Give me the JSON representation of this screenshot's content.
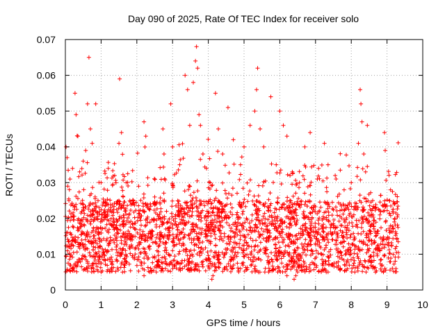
{
  "chart_data": {
    "type": "scatter",
    "title": "Day 090 of 2025, Rate Of TEC Index for receiver solo",
    "xlabel": "GPS time / hours",
    "ylabel": "ROTI / TECUs",
    "xlim": [
      0,
      10
    ],
    "ylim": [
      0,
      0.07
    ],
    "x_ticks": [
      "0",
      "1",
      "2",
      "3",
      "4",
      "5",
      "6",
      "7",
      "8",
      "9",
      "10"
    ],
    "y_ticks": [
      "0",
      "0.01",
      "0.02",
      "0.03",
      "0.04",
      "0.05",
      "0.06",
      "0.07"
    ],
    "grid": true,
    "marker": "+",
    "color": "#ff0000",
    "series": [
      {
        "name": "ROTI",
        "x_range": [
          0.0,
          9.32
        ],
        "typical_range": [
          0.005,
          0.025
        ],
        "points": [
          [
            0.02,
            0.04
          ],
          [
            0.05,
            0.037
          ],
          [
            0.07,
            0.029
          ],
          [
            0.1,
            0.025
          ],
          [
            0.13,
            0.031
          ],
          [
            0.2,
            0.034
          ],
          [
            0.27,
            0.055
          ],
          [
            0.3,
            0.049
          ],
          [
            0.35,
            0.043
          ],
          [
            0.4,
            0.033
          ],
          [
            0.5,
            0.036
          ],
          [
            0.57,
            0.039
          ],
          [
            0.62,
            0.052
          ],
          [
            0.66,
            0.065
          ],
          [
            0.7,
            0.045
          ],
          [
            0.75,
            0.041
          ],
          [
            0.85,
            0.052
          ],
          [
            1.0,
            0.03
          ],
          [
            1.2,
            0.034
          ],
          [
            1.38,
            0.032
          ],
          [
            1.5,
            0.041
          ],
          [
            1.52,
            0.059
          ],
          [
            1.57,
            0.044
          ],
          [
            1.7,
            0.03
          ],
          [
            1.9,
            0.025
          ],
          [
            2.05,
            0.029
          ],
          [
            2.2,
            0.047
          ],
          [
            2.25,
            0.043
          ],
          [
            2.5,
            0.026
          ],
          [
            2.73,
            0.045
          ],
          [
            2.76,
            0.038
          ],
          [
            2.95,
            0.052
          ],
          [
            3.0,
            0.04
          ],
          [
            3.2,
            0.035
          ],
          [
            3.35,
            0.06
          ],
          [
            3.42,
            0.056
          ],
          [
            3.48,
            0.046
          ],
          [
            3.58,
            0.058
          ],
          [
            3.64,
            0.064
          ],
          [
            3.67,
            0.068
          ],
          [
            3.7,
            0.062
          ],
          [
            3.74,
            0.049
          ],
          [
            3.78,
            0.046
          ],
          [
            3.85,
            0.038
          ],
          [
            3.95,
            0.034
          ],
          [
            4.05,
            0.03
          ],
          [
            4.2,
            0.055
          ],
          [
            4.28,
            0.045
          ],
          [
            4.4,
            0.038
          ],
          [
            4.55,
            0.051
          ],
          [
            4.7,
            0.042
          ],
          [
            4.9,
            0.035
          ],
          [
            5.0,
            0.04
          ],
          [
            5.17,
            0.046
          ],
          [
            5.3,
            0.05
          ],
          [
            5.35,
            0.056
          ],
          [
            5.38,
            0.062
          ],
          [
            5.45,
            0.045
          ],
          [
            5.55,
            0.04
          ],
          [
            5.75,
            0.054
          ],
          [
            5.9,
            0.035
          ],
          [
            6.0,
            0.05
          ],
          [
            6.1,
            0.046
          ],
          [
            6.2,
            0.043
          ],
          [
            6.35,
            0.033
          ],
          [
            6.55,
            0.03
          ],
          [
            6.7,
            0.04
          ],
          [
            6.85,
            0.044
          ],
          [
            7.05,
            0.031
          ],
          [
            7.25,
            0.041
          ],
          [
            7.35,
            0.035
          ],
          [
            7.55,
            0.032
          ],
          [
            7.8,
            0.028
          ],
          [
            8.0,
            0.03
          ],
          [
            8.2,
            0.041
          ],
          [
            8.25,
            0.056
          ],
          [
            8.27,
            0.052
          ],
          [
            8.3,
            0.047
          ],
          [
            8.35,
            0.038
          ],
          [
            8.4,
            0.033
          ],
          [
            8.45,
            0.046
          ],
          [
            8.6,
            0.025
          ],
          [
            8.8,
            0.021
          ],
          [
            8.93,
            0.044
          ],
          [
            8.95,
            0.039
          ],
          [
            9.1,
            0.028
          ],
          [
            9.2,
            0.024
          ],
          [
            9.3,
            0.021
          ],
          [
            0.2,
            0.006
          ],
          [
            1.0,
            0.005
          ],
          [
            1.6,
            0.005
          ],
          [
            2.2,
            0.004
          ],
          [
            2.8,
            0.006
          ],
          [
            4.1,
            0.003
          ],
          [
            4.13,
            0.004
          ],
          [
            4.9,
            0.006
          ],
          [
            5.4,
            0.005
          ],
          [
            6.2,
            0.004
          ],
          [
            6.4,
            0.003
          ],
          [
            6.45,
            0.004
          ],
          [
            7.3,
            0.005
          ],
          [
            8.1,
            0.005
          ],
          [
            8.9,
            0.005
          ],
          [
            9.25,
            0.006
          ]
        ]
      }
    ]
  }
}
